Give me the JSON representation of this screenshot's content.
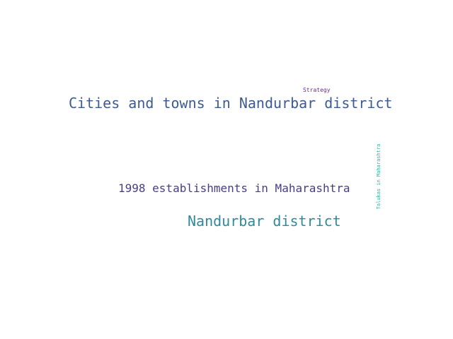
{
  "word_cloud": {
    "words": [
      {
        "text": "Strategy",
        "color": "#6a2c91"
      },
      {
        "text": "Cities and towns in Nandurbar district",
        "color": "#3b5b92"
      },
      {
        "text": "1998 establishments in Maharashtra",
        "color": "#483d8b"
      },
      {
        "text": "Nandurbar district",
        "color": "#2f8a9c"
      },
      {
        "text": "Talukas in Maharashtra",
        "color": "#2bb3a3"
      }
    ]
  }
}
